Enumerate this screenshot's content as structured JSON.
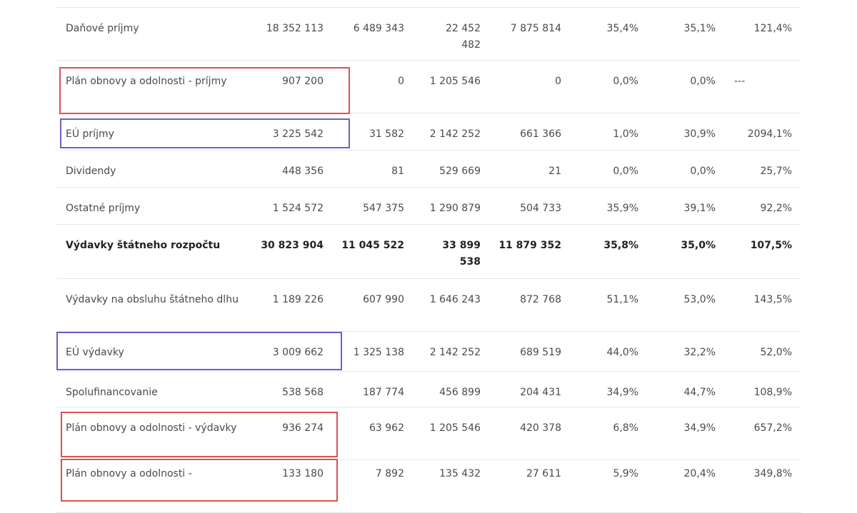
{
  "rows": [
    {
      "label": "",
      "v": [
        "",
        "",
        "",
        "",
        "",
        "",
        ""
      ]
    },
    {
      "label": "Daňové príjmy",
      "v": [
        "18 352 113",
        "6 489 343",
        "22 452 482",
        "7 875 814",
        "35,4%",
        "35,1%",
        "121,4%"
      ]
    },
    {
      "label": "Plán obnovy a odolnosti - príjmy",
      "v": [
        "907 200",
        "0",
        "1 205 546",
        "0",
        "0,0%",
        "0,0%",
        "---"
      ]
    },
    {
      "label": "EÚ príjmy",
      "v": [
        "3 225 542",
        "31 582",
        "2 142 252",
        "661 366",
        "1,0%",
        "30,9%",
        "2094,1%"
      ]
    },
    {
      "label": "Dividendy",
      "v": [
        "448 356",
        "81",
        "529 669",
        "21",
        "0,0%",
        "0,0%",
        "25,7%"
      ]
    },
    {
      "label": "Ostatné príjmy",
      "v": [
        "1 524 572",
        "547 375",
        "1 290 879",
        "504 733",
        "35,9%",
        "39,1%",
        "92,2%"
      ]
    },
    {
      "label": "Výdavky štátneho rozpočtu",
      "v": [
        "30 823 904",
        "11 045 522",
        "33 899 538",
        "11 879 352",
        "35,8%",
        "35,0%",
        "107,5%"
      ]
    },
    {
      "label": "Výdavky na obsluhu štátneho dlhu",
      "v": [
        "1 189 226",
        "607 990",
        "1 646 243",
        "872 768",
        "51,1%",
        "53,0%",
        "143,5%"
      ]
    },
    {
      "label": "EÚ výdavky",
      "v": [
        "3 009 662",
        "1 325 138",
        "2 142 252",
        "689 519",
        "44,0%",
        "32,2%",
        "52,0%"
      ]
    },
    {
      "label": "Spolufinancovanie",
      "v": [
        "538 568",
        "187 774",
        "456 899",
        "204 431",
        "34,9%",
        "44,7%",
        "108,9%"
      ]
    },
    {
      "label": "Plán obnovy a odolnosti - výdavky",
      "v": [
        "936 274",
        "63 962",
        "1 205 546",
        "420 378",
        "6,8%",
        "34,9%",
        "657,2%"
      ]
    },
    {
      "label": "Plán obnovy a odolnosti -",
      "v": [
        "133 180",
        "7 892",
        "135 432",
        "27 611",
        "5,9%",
        "20,4%",
        "349,8%"
      ]
    }
  ]
}
